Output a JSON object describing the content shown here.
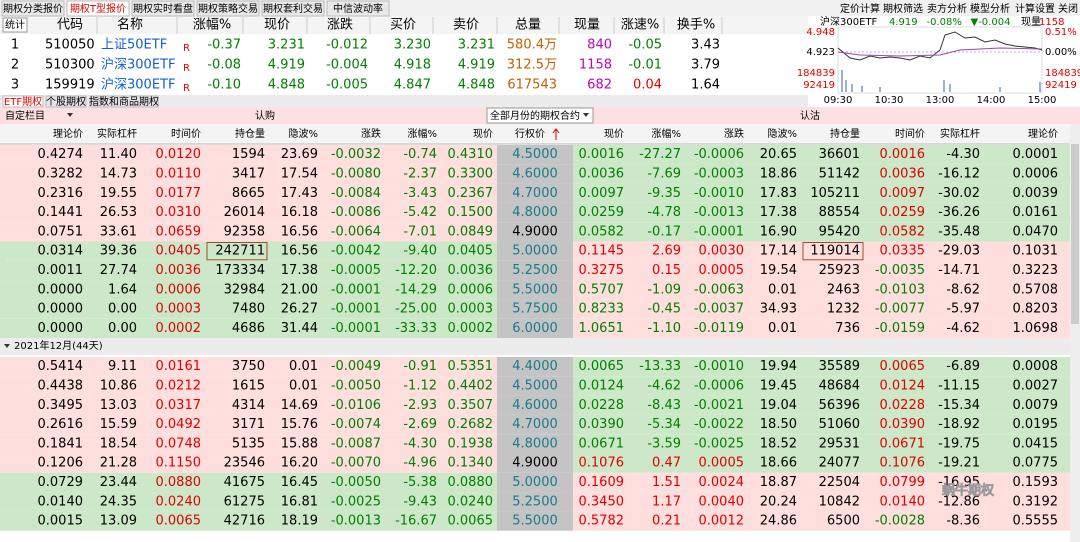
{
  "tabs": [
    "期权分类报价",
    "期权T型报价",
    "期权实时看盘",
    "期权策略交易",
    "期权套利交易",
    "中信波动率"
  ],
  "toolbar": [
    "定价计算",
    "期权筛选",
    "卖方分析",
    "模型分析",
    "计算设置",
    "关闭"
  ],
  "quote_table": {
    "button": "统计",
    "headers": [
      "代码",
      "名称",
      "涨幅%",
      "现价",
      "涨跌",
      "买价",
      "卖价",
      "总量",
      "现量",
      "涨速%",
      "换手%"
    ],
    "rows": [
      [
        "1",
        "510050",
        "上证50ETF",
        "R",
        "-0.37",
        "3.231",
        "-0.012",
        "3.230",
        "3.231",
        "580.4万",
        "840",
        "-0.05",
        "3.43"
      ],
      [
        "2",
        "510300",
        "沪深300ETF",
        "R",
        "-0.08",
        "4.919",
        "-0.004",
        "4.918",
        "4.919",
        "312.5万",
        "1158",
        "-0.01",
        "3.79"
      ],
      [
        "3",
        "159919",
        "沪深300ETF",
        "R",
        "-0.10",
        "4.848",
        "-0.005",
        "4.847",
        "4.848",
        "617543",
        "682",
        "0.04",
        "1.64"
      ]
    ]
  },
  "mini_chart": {
    "title": [
      "沪深300ETF",
      "4.919",
      "-0.08%",
      "▼-0.004",
      "现量",
      "1158"
    ],
    "left_labels": [
      "4.948",
      "4.923",
      "184839",
      "92419"
    ],
    "right_labels": [
      "0.51%",
      "0.00%",
      "184839",
      "92419"
    ],
    "times": [
      "09:30",
      "10:30",
      "13:00",
      "14:00",
      "15:00"
    ]
  },
  "sub_tabs": [
    "ETF期权",
    "个股期权",
    "指数和商品期权"
  ],
  "option_bar": {
    "custom": "自定栏目",
    "call": "认购",
    "month_select": "全部月份的期权合约",
    "put": "认沽"
  },
  "t_headers": [
    "理论价",
    "实际杠杆",
    "时间价",
    "持仓量",
    "隐波%",
    "涨跌",
    "涨幅%",
    "现价",
    "行权价",
    "现价",
    "涨幅%",
    "涨跌",
    "隐波%",
    "持仓量",
    "时间价",
    "实际杠杆",
    "理论价"
  ],
  "blocks": [
    {
      "rows": [
        [
          "0.4274",
          "11.40",
          "0.0120",
          "1594",
          "23.69",
          "-0.0032",
          "-0.74",
          "0.4310",
          "4.5000",
          "0.0016",
          "-27.27",
          "-0.0006",
          "20.65",
          "36601",
          "0.0016",
          "-4.30",
          "0.0001"
        ],
        [
          "0.3282",
          "14.73",
          "0.0110",
          "3417",
          "17.54",
          "-0.0080",
          "-2.37",
          "0.3300",
          "4.6000",
          "0.0036",
          "-7.69",
          "-0.0003",
          "18.86",
          "51142",
          "0.0036",
          "-16.12",
          "0.0006"
        ],
        [
          "0.2316",
          "19.55",
          "0.0177",
          "8665",
          "17.43",
          "-0.0084",
          "-3.43",
          "0.2367",
          "4.7000",
          "0.0097",
          "-9.35",
          "-0.0010",
          "17.83",
          "105211",
          "0.0097",
          "-30.02",
          "0.0039"
        ],
        [
          "0.1441",
          "26.53",
          "0.0310",
          "26014",
          "16.18",
          "-0.0086",
          "-5.42",
          "0.1500",
          "4.8000",
          "0.0259",
          "-4.78",
          "-0.0013",
          "17.38",
          "88554",
          "0.0259",
          "-36.26",
          "0.0161"
        ],
        [
          "0.0751",
          "33.61",
          "0.0659",
          "92358",
          "16.56",
          "-0.0064",
          "-7.01",
          "0.0849",
          "4.9000",
          "0.0582",
          "-0.17",
          "-0.0001",
          "16.90",
          "95420",
          "0.0582",
          "-35.48",
          "0.0470"
        ],
        [
          "0.0314",
          "39.36",
          "0.0405",
          "242711",
          "16.56",
          "-0.0042",
          "-9.40",
          "0.0405",
          "5.0000",
          "0.1145",
          "2.69",
          "0.0030",
          "17.14",
          "119014",
          "0.0335",
          "-29.03",
          "0.1031"
        ],
        [
          "0.0011",
          "27.74",
          "0.0036",
          "173334",
          "17.38",
          "-0.0005",
          "-12.20",
          "0.0036",
          "5.2500",
          "0.3275",
          "0.15",
          "0.0005",
          "19.54",
          "25923",
          "-0.0035",
          "-14.71",
          "0.3223"
        ],
        [
          "0.0000",
          "1.64",
          "0.0006",
          "32984",
          "21.00",
          "-0.0001",
          "-14.29",
          "0.0006",
          "5.5000",
          "0.5707",
          "-1.09",
          "-0.0063",
          "0.01",
          "2463",
          "-0.0103",
          "-8.62",
          "0.5708"
        ],
        [
          "0.0000",
          "0.00",
          "0.0003",
          "7480",
          "26.27",
          "-0.0001",
          "-25.00",
          "0.0003",
          "5.7500",
          "0.8233",
          "-0.45",
          "-0.0037",
          "34.93",
          "1232",
          "-0.0077",
          "-5.97",
          "0.8203"
        ],
        [
          "0.0000",
          "0.00",
          "0.0002",
          "4686",
          "31.44",
          "-0.0001",
          "-33.33",
          "0.0002",
          "6.0000",
          "1.0651",
          "-1.10",
          "-0.0119",
          "0.01",
          "736",
          "-0.0159",
          "-4.62",
          "1.0698"
        ]
      ]
    },
    {
      "label": "2021年12月(44天)",
      "rows": [
        [
          "0.5414",
          "9.11",
          "0.0161",
          "3750",
          "0.01",
          "-0.0049",
          "-0.91",
          "0.5351",
          "4.4000",
          "0.0065",
          "-13.33",
          "-0.0010",
          "19.94",
          "35589",
          "0.0065",
          "-6.89",
          "0.0008"
        ],
        [
          "0.4438",
          "10.86",
          "0.0212",
          "1615",
          "0.01",
          "-0.0050",
          "-1.12",
          "0.4402",
          "4.5000",
          "0.0124",
          "-4.62",
          "-0.0006",
          "19.45",
          "48684",
          "0.0124",
          "-11.15",
          "0.0027"
        ],
        [
          "0.3495",
          "13.03",
          "0.0317",
          "4314",
          "14.69",
          "-0.0106",
          "-2.93",
          "0.3507",
          "4.6000",
          "0.0228",
          "-8.43",
          "-0.0021",
          "19.04",
          "56396",
          "0.0228",
          "-15.34",
          "0.0079"
        ],
        [
          "0.2616",
          "15.59",
          "0.0492",
          "3171",
          "15.76",
          "-0.0074",
          "-2.69",
          "0.2682",
          "4.7000",
          "0.0390",
          "-5.34",
          "-0.0022",
          "18.50",
          "51060",
          "0.0390",
          "-18.92",
          "0.0195"
        ],
        [
          "0.1841",
          "18.54",
          "0.0748",
          "5135",
          "15.88",
          "-0.0087",
          "-4.30",
          "0.1938",
          "4.8000",
          "0.0671",
          "-3.59",
          "-0.0025",
          "18.52",
          "29531",
          "0.0671",
          "-19.75",
          "0.0415"
        ],
        [
          "0.1206",
          "21.28",
          "0.1150",
          "23546",
          "16.20",
          "-0.0070",
          "-4.96",
          "0.1340",
          "4.9000",
          "0.1076",
          "0.47",
          "0.0005",
          "18.66",
          "24077",
          "0.1076",
          "-19.21",
          "0.0775"
        ],
        [
          "0.0729",
          "23.44",
          "0.0880",
          "41675",
          "16.45",
          "-0.0050",
          "-5.38",
          "0.0880",
          "5.0000",
          "0.1609",
          "1.51",
          "0.0024",
          "18.87",
          "22504",
          "0.0799",
          "-16.95",
          "0.1593"
        ],
        [
          "0.0140",
          "24.35",
          "0.0240",
          "61275",
          "16.81",
          "-0.0025",
          "-9.43",
          "0.0240",
          "5.2500",
          "0.3450",
          "1.17",
          "0.0040",
          "20.24",
          "10842",
          "0.0140",
          "-12.86",
          "0.3192"
        ],
        [
          "0.0015",
          "13.09",
          "0.0065",
          "42716",
          "18.19",
          "-0.0013",
          "-16.67",
          "0.0065",
          "5.5000",
          "0.5782",
          "0.21",
          "0.0012",
          "24.86",
          "6500",
          "-0.0028",
          "-8.36",
          "0.5555"
        ]
      ]
    }
  ],
  "watermark": "蜗牛期权"
}
